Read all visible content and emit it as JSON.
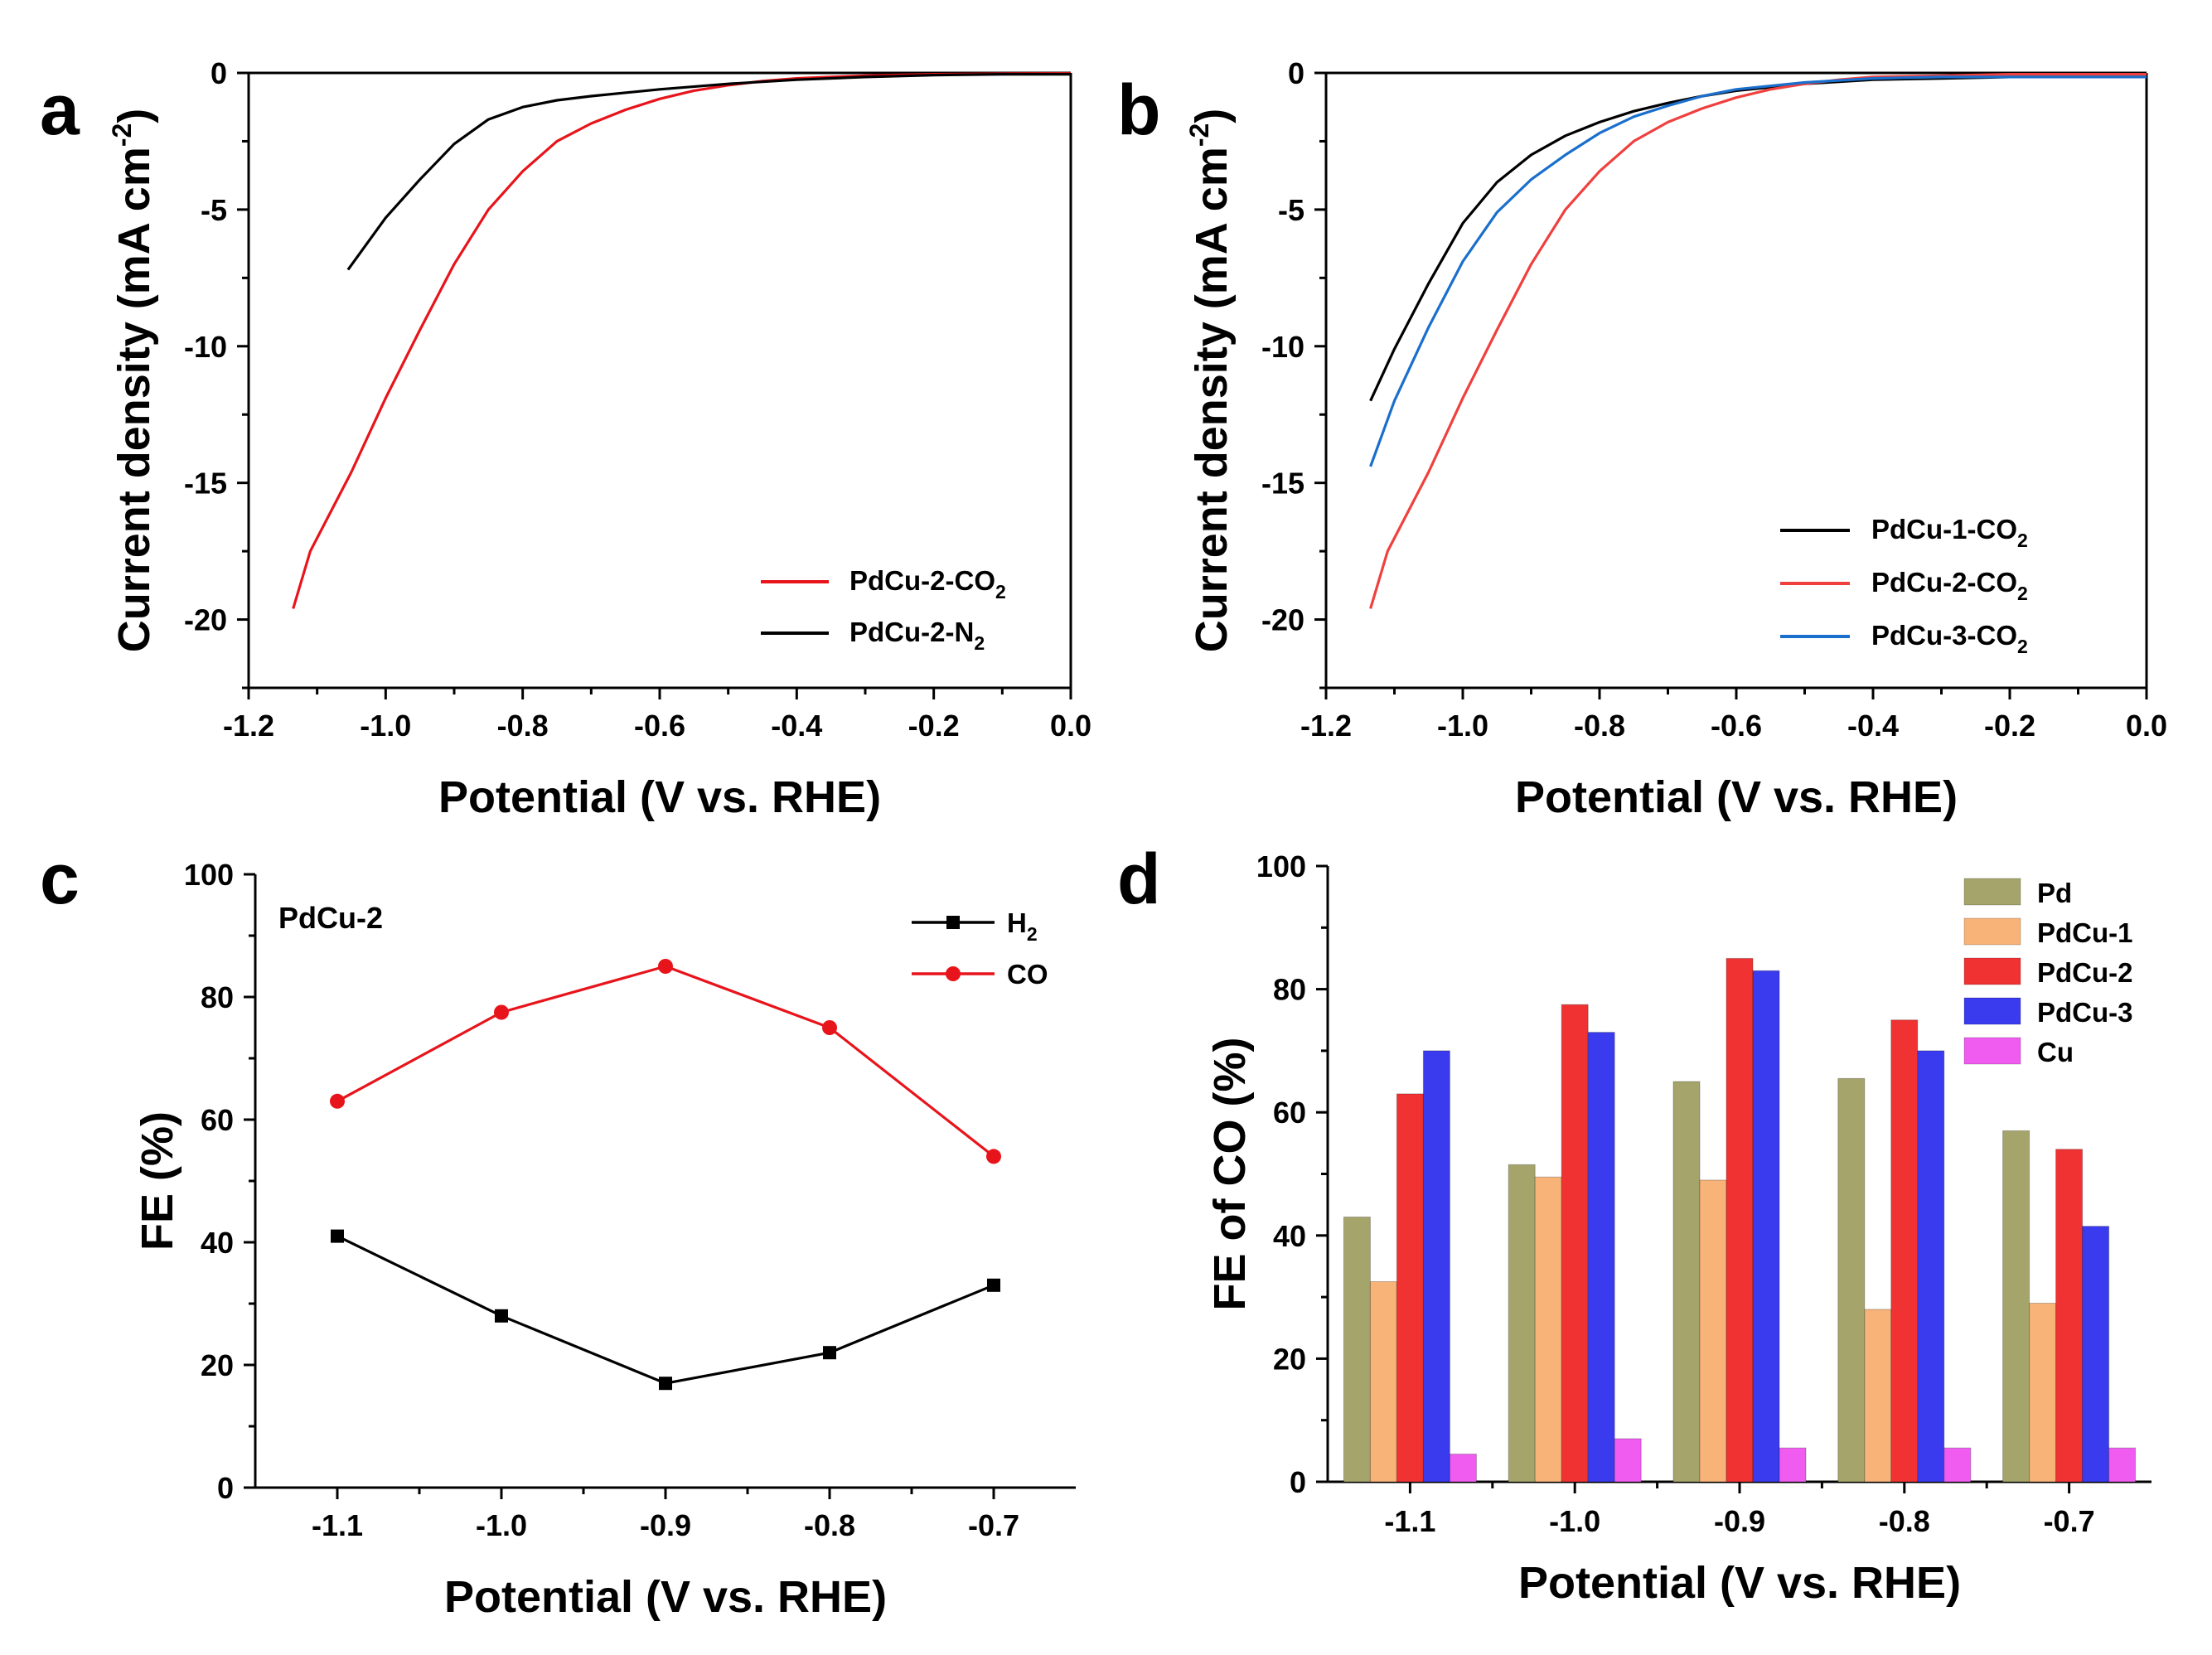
{
  "panels": [
    "a",
    "b",
    "c",
    "d"
  ],
  "chart_data": [
    {
      "id": "a",
      "type": "line",
      "xlabel": "Potential (V vs. RHE)",
      "ylabel": "Current density (mA cm",
      "ylabel_sup": "-2",
      "ylabel_end": ")",
      "xlim": [
        -1.2,
        0.0
      ],
      "ylim": [
        -22.5,
        0
      ],
      "xticks": [
        -1.2,
        -1.0,
        -0.8,
        -0.6,
        -0.4,
        -0.2,
        0.0
      ],
      "xtick_labels": [
        "-1.2",
        "-1.0",
        "-0.8",
        "-0.6",
        "-0.4",
        "-0.2",
        "0.0"
      ],
      "yticks": [
        0,
        -5,
        -10,
        -15,
        -20
      ],
      "ytick_labels": [
        "0",
        "-5",
        "-10",
        "-15",
        "-20"
      ],
      "legend_position": "bottom-right",
      "series": [
        {
          "name": "PdCu-2-CO",
          "sub": "2",
          "color": "#e8141b",
          "x": [
            -1.135,
            -1.11,
            -1.05,
            -1.0,
            -0.95,
            -0.9,
            -0.85,
            -0.8,
            -0.75,
            -0.7,
            -0.65,
            -0.6,
            -0.55,
            -0.5,
            -0.45,
            -0.4,
            -0.35,
            -0.3,
            -0.2,
            -0.1,
            0.0
          ],
          "y": [
            -19.6,
            -17.5,
            -14.6,
            -11.9,
            -9.4,
            -7.0,
            -5.0,
            -3.6,
            -2.5,
            -1.85,
            -1.35,
            -0.95,
            -0.65,
            -0.45,
            -0.3,
            -0.2,
            -0.15,
            -0.1,
            -0.05,
            -0.03,
            -0.02
          ]
        },
        {
          "name": "PdCu-2-N",
          "sub": "2",
          "color": "#000000",
          "x": [
            -1.055,
            -1.0,
            -0.95,
            -0.9,
            -0.85,
            -0.8,
            -0.75,
            -0.7,
            -0.6,
            -0.5,
            -0.4,
            -0.3,
            -0.2,
            -0.1,
            0.0
          ],
          "y": [
            -7.2,
            -5.3,
            -3.9,
            -2.6,
            -1.7,
            -1.25,
            -1.0,
            -0.85,
            -0.6,
            -0.4,
            -0.25,
            -0.15,
            -0.08,
            -0.05,
            -0.05
          ]
        }
      ]
    },
    {
      "id": "b",
      "type": "line",
      "xlabel": "Potential (V vs. RHE)",
      "ylabel": "Current density (mA cm",
      "ylabel_sup": "-2",
      "ylabel_end": ")",
      "xlim": [
        -1.2,
        0.0
      ],
      "ylim": [
        -22.5,
        0
      ],
      "xticks": [
        -1.2,
        -1.0,
        -0.8,
        -0.6,
        -0.4,
        -0.2,
        0.0
      ],
      "xtick_labels": [
        "-1.2",
        "-1.0",
        "-0.8",
        "-0.6",
        "-0.4",
        "-0.2",
        "0.0"
      ],
      "yticks": [
        0,
        -5,
        -10,
        -15,
        -20
      ],
      "ytick_labels": [
        "0",
        "-5",
        "-10",
        "-15",
        "-20"
      ],
      "legend_position": "bottom-right",
      "series": [
        {
          "name": "PdCu-1-CO",
          "sub": "2",
          "color": "#000000",
          "x": [
            -1.135,
            -1.1,
            -1.05,
            -1.0,
            -0.95,
            -0.9,
            -0.85,
            -0.8,
            -0.75,
            -0.7,
            -0.65,
            -0.6,
            -0.5,
            -0.4,
            -0.3,
            -0.2,
            -0.1,
            0.0
          ],
          "y": [
            -12.0,
            -10.1,
            -7.7,
            -5.5,
            -4.0,
            -3.0,
            -2.3,
            -1.8,
            -1.4,
            -1.1,
            -0.85,
            -0.65,
            -0.4,
            -0.25,
            -0.2,
            -0.15,
            -0.15,
            -0.15
          ]
        },
        {
          "name": "PdCu-2-CO",
          "sub": "2",
          "color": "#f0403e",
          "x": [
            -1.135,
            -1.11,
            -1.05,
            -1.0,
            -0.95,
            -0.9,
            -0.85,
            -0.8,
            -0.75,
            -0.7,
            -0.65,
            -0.6,
            -0.55,
            -0.5,
            -0.45,
            -0.4,
            -0.3,
            -0.2,
            -0.1,
            0.0
          ],
          "y": [
            -19.6,
            -17.5,
            -14.6,
            -11.9,
            -9.4,
            -7.0,
            -5.0,
            -3.6,
            -2.5,
            -1.8,
            -1.3,
            -0.9,
            -0.6,
            -0.4,
            -0.25,
            -0.15,
            -0.1,
            -0.05,
            -0.05,
            -0.05
          ]
        },
        {
          "name": "PdCu-3-CO",
          "sub": "2",
          "color": "#1a6fcc",
          "x": [
            -1.135,
            -1.1,
            -1.05,
            -1.0,
            -0.95,
            -0.9,
            -0.85,
            -0.8,
            -0.75,
            -0.7,
            -0.65,
            -0.6,
            -0.5,
            -0.4,
            -0.3,
            -0.2,
            -0.1,
            0.0
          ],
          "y": [
            -14.4,
            -12.0,
            -9.3,
            -6.9,
            -5.1,
            -3.9,
            -3.0,
            -2.2,
            -1.6,
            -1.2,
            -0.85,
            -0.6,
            -0.35,
            -0.2,
            -0.15,
            -0.15,
            -0.15,
            -0.15
          ]
        }
      ]
    },
    {
      "id": "c",
      "type": "line",
      "annotation": "PdCu-2",
      "xlabel": "Potential (V vs. RHE)",
      "ylabel": "FE (%)",
      "xlim": [
        -1.15,
        -0.65
      ],
      "ylim": [
        0,
        100
      ],
      "xticks": [
        -1.1,
        -1.0,
        -0.9,
        -0.8,
        -0.7
      ],
      "xtick_labels": [
        "-1.1",
        "-1.0",
        "-0.9",
        "-0.8",
        "-0.7"
      ],
      "yticks": [
        0,
        20,
        40,
        60,
        80,
        100
      ],
      "ytick_labels": [
        "0",
        "20",
        "40",
        "60",
        "80",
        "100"
      ],
      "legend_position": "top-right",
      "series": [
        {
          "name": "H",
          "sub": "2",
          "color": "#000000",
          "marker": "square",
          "x": [
            -1.1,
            -1.0,
            -0.9,
            -0.8,
            -0.7
          ],
          "y": [
            41,
            28,
            17,
            22,
            33
          ]
        },
        {
          "name": "CO",
          "sub": "",
          "color": "#e8141b",
          "marker": "circle",
          "x": [
            -1.1,
            -1.0,
            -0.9,
            -0.8,
            -0.7
          ],
          "y": [
            63,
            77.5,
            85,
            75,
            54
          ]
        }
      ]
    },
    {
      "id": "d",
      "type": "bar",
      "xlabel": "Potential (V vs. RHE)",
      "ylabel": "FE of CO (%)",
      "categories": [
        "-1.1",
        "-1.0",
        "-0.9",
        "-0.8",
        "-0.7"
      ],
      "ylim": [
        0,
        100
      ],
      "yticks": [
        0,
        20,
        40,
        60,
        80,
        100
      ],
      "ytick_labels": [
        "0",
        "20",
        "40",
        "60",
        "80",
        "100"
      ],
      "legend_position": "top-right",
      "series": [
        {
          "name": "Pd",
          "color": "#a5a56b",
          "values": [
            43,
            51.5,
            65,
            65.5,
            57
          ]
        },
        {
          "name": "PdCu-1",
          "color": "#f7b378",
          "values": [
            32.5,
            49.5,
            49,
            28,
            29
          ]
        },
        {
          "name": "PdCu-2",
          "color": "#f03232",
          "values": [
            63,
            77.5,
            85,
            75,
            54
          ]
        },
        {
          "name": "PdCu-3",
          "color": "#3a3aef",
          "values": [
            70,
            73,
            83,
            70,
            41.5
          ]
        },
        {
          "name": "Cu",
          "color": "#ef5cef",
          "values": [
            4.5,
            7,
            5.5,
            5.5,
            5.5
          ]
        }
      ]
    }
  ]
}
